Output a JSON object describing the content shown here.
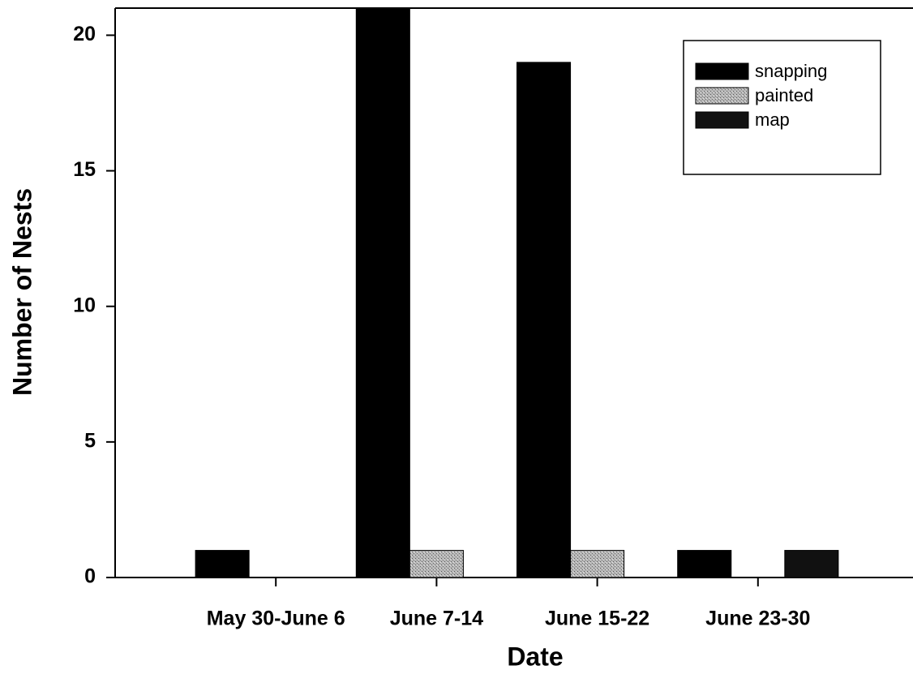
{
  "chart_data": {
    "type": "bar",
    "x_label": "Date",
    "y_label": "Number of Nests",
    "categories": [
      "May 30-June 6",
      "June 7-14",
      "June 15-22",
      "June 23-30"
    ],
    "series": [
      {
        "name": "snapping",
        "color": "#000000",
        "values": [
          1,
          21,
          19,
          1
        ]
      },
      {
        "name": "painted",
        "color": "#a9a9a9",
        "values": [
          0,
          1,
          1,
          0
        ]
      },
      {
        "name": "map",
        "color": "#111111",
        "values": [
          0,
          0,
          0,
          1
        ]
      }
    ],
    "ylim": [
      0,
      21
    ],
    "yticks": [
      0,
      5,
      10,
      15,
      20
    ],
    "legend": "upper right"
  }
}
